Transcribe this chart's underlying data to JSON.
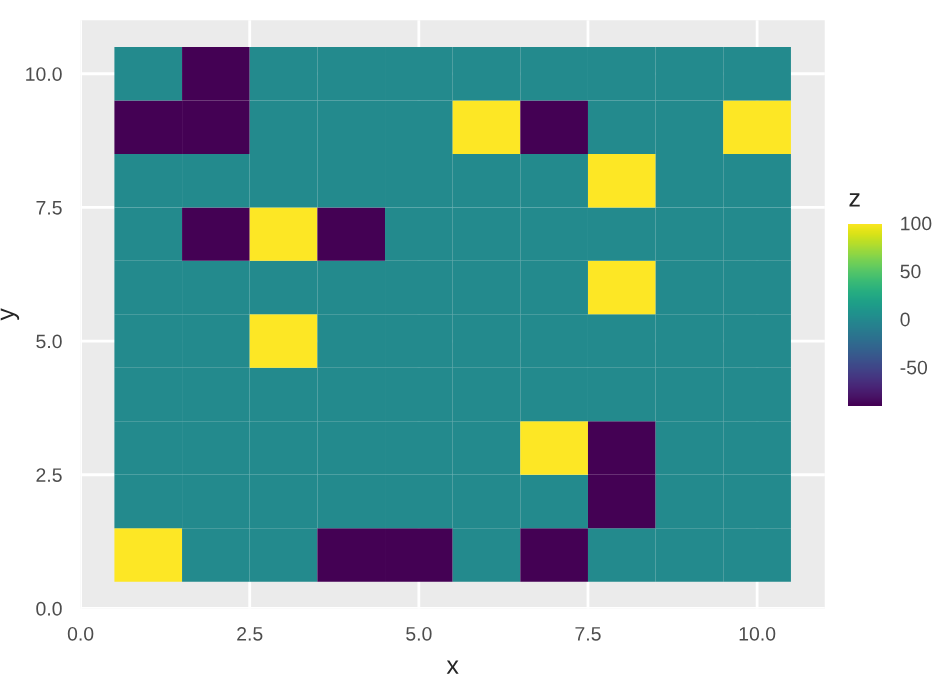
{
  "chart_data": {
    "type": "heatmap",
    "xlabel": "x",
    "ylabel": "y",
    "clabel": "z",
    "x": [
      1,
      2,
      3,
      4,
      5,
      6,
      7,
      8,
      9,
      10
    ],
    "y": [
      10,
      9,
      8,
      7,
      6,
      5,
      4,
      3,
      2,
      1
    ],
    "cells": [
      [
        0,
        -90,
        0,
        0,
        0,
        0,
        0,
        0,
        0,
        0
      ],
      [
        -90,
        -90,
        0,
        0,
        0,
        100,
        -90,
        0,
        0,
        100
      ],
      [
        0,
        0,
        0,
        0,
        0,
        0,
        0,
        100,
        0,
        0
      ],
      [
        0,
        -90,
        100,
        -90,
        0,
        0,
        0,
        0,
        0,
        0
      ],
      [
        0,
        0,
        0,
        0,
        0,
        0,
        0,
        100,
        0,
        0
      ],
      [
        0,
        0,
        100,
        0,
        0,
        0,
        0,
        0,
        0,
        0
      ],
      [
        0,
        0,
        0,
        0,
        0,
        0,
        0,
        0,
        0,
        0
      ],
      [
        0,
        0,
        0,
        0,
        0,
        0,
        100,
        -90,
        0,
        0
      ],
      [
        0,
        0,
        0,
        0,
        0,
        0,
        0,
        -90,
        0,
        0
      ],
      [
        100,
        0,
        0,
        -90,
        -90,
        0,
        -90,
        0,
        0,
        0
      ]
    ],
    "clim": [
      -90,
      100
    ],
    "cticks": [
      -50,
      0,
      50,
      100
    ],
    "xlim": [
      0,
      11
    ],
    "ylim": [
      0,
      11
    ],
    "xticks": [
      {
        "value": 0,
        "label": "0.0"
      },
      {
        "value": 2.5,
        "label": "2.5"
      },
      {
        "value": 5,
        "label": "5.0"
      },
      {
        "value": 7.5,
        "label": "7.5"
      },
      {
        "value": 10,
        "label": "10.0"
      }
    ],
    "yticks": [
      {
        "value": 0,
        "label": "0.0"
      },
      {
        "value": 2.5,
        "label": "2.5"
      },
      {
        "value": 5,
        "label": "5.0"
      },
      {
        "value": 7.5,
        "label": "7.5"
      },
      {
        "value": 10,
        "label": "10.0"
      }
    ],
    "grid": true
  }
}
